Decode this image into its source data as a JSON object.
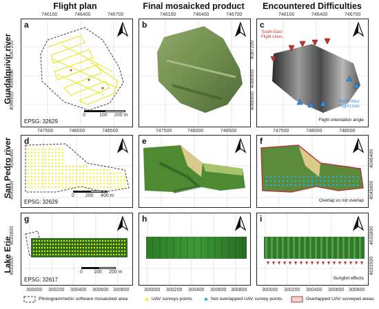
{
  "columns": [
    "Flight plan",
    "Final mosaicked product",
    "Encountered Difficulties"
  ],
  "rows": [
    "Guadalquivir river",
    "San Pedro river",
    "Lake Erie"
  ],
  "panels": {
    "a": {
      "label": "a",
      "epsg": "EPSG: 32629",
      "scale": [
        "0",
        "100",
        "200 m"
      ]
    },
    "b": {
      "label": "b"
    },
    "c": {
      "label": "c",
      "caption": "Flight orientation angle",
      "se_label": [
        "South-East",
        "Flight Lines"
      ],
      "nw_label": [
        "North-West",
        "Flight Lines"
      ]
    },
    "d": {
      "label": "d",
      "epsg": "EPSG: 32629",
      "scale": [
        "0",
        "200",
        "400 m"
      ]
    },
    "e": {
      "label": "e"
    },
    "f": {
      "label": "f",
      "caption": "Overlap vs not overlap"
    },
    "g": {
      "label": "g",
      "epsg": "EPSG: 32617",
      "scale": [
        "0",
        "100",
        "200 m"
      ]
    },
    "h": {
      "label": "h"
    },
    "i": {
      "label": "i",
      "caption": "Sunglint effects"
    }
  },
  "axes": {
    "row1_x": [
      "746100",
      "746400",
      "746700"
    ],
    "row1_y": [
      "4087200",
      "4086900",
      "4086600"
    ],
    "row2_x": [
      "747500",
      "748000",
      "748500"
    ],
    "row2_y": [
      "4046400",
      "4045800"
    ],
    "row3_x": [
      "300000",
      "300200",
      "300400",
      "300600",
      "300800"
    ],
    "row3_y": [
      "4633800",
      "4633500"
    ]
  },
  "legend": {
    "mosaicked": "Photogrammetric software mosaicked area",
    "uav_points": "UAV surveys points",
    "not_overlapped": "Not overlapped UAV survey points",
    "overlapped_areas": "Overlapped UAV surveyed areas"
  },
  "colors": {
    "flight_line": "#e8e82a",
    "point_yellow": "#f2f200",
    "point_blue": "#39a9db",
    "overlap_red": "#b33a3a",
    "se_arrow": "#c9302c",
    "nw_arrow": "#3a8fd6",
    "veg_green": "#3f8a2e"
  }
}
